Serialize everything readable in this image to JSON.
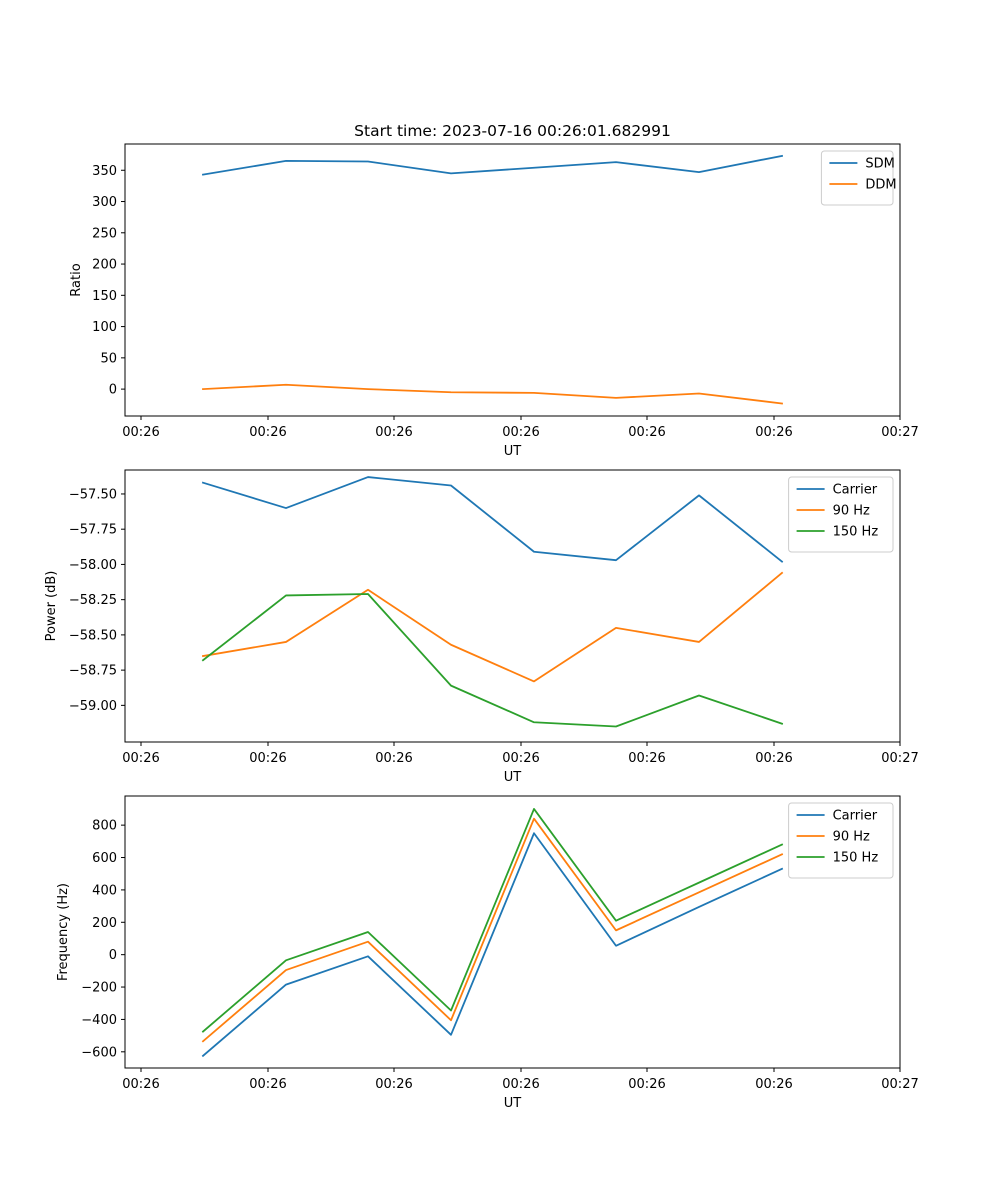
{
  "figure_title": "Start time: 2023-07-16 00:26:01.682991",
  "chart_data": [
    {
      "type": "line",
      "title": "Start time: 2023-07-16 00:26:01.682991",
      "xlabel": "UT",
      "ylabel": "Ratio",
      "x_tick_labels": [
        "00:26",
        "00:26",
        "00:26",
        "00:26",
        "00:26",
        "00:26",
        "00:27"
      ],
      "yticks": [
        0,
        50,
        100,
        150,
        200,
        250,
        300,
        350
      ],
      "ytick_labels": [
        "0",
        "50",
        "100",
        "150",
        "200",
        "250",
        "300",
        "350"
      ],
      "ylim": [
        -43,
        392
      ],
      "legend_position": "top-right",
      "series": [
        {
          "name": "SDM",
          "color": "#1f77b4",
          "values": [
            343,
            365,
            364,
            345,
            354,
            363,
            347,
            373
          ]
        },
        {
          "name": "DDM",
          "color": "#ff7f0e",
          "values": [
            0,
            7,
            0,
            -5,
            -6,
            -14,
            -7,
            -23
          ]
        }
      ]
    },
    {
      "type": "line",
      "title": "",
      "xlabel": "UT",
      "ylabel": "Power (dB)",
      "x_tick_labels": [
        "00:26",
        "00:26",
        "00:26",
        "00:26",
        "00:26",
        "00:26",
        "00:27"
      ],
      "yticks": [
        -59.0,
        -58.75,
        -58.5,
        -58.25,
        -58.0,
        -57.75,
        -57.5
      ],
      "ytick_labels": [
        "−59.00",
        "−58.75",
        "−58.50",
        "−58.25",
        "−58.00",
        "−57.75",
        "−57.50"
      ],
      "ylim": [
        -59.26,
        -57.33
      ],
      "legend_position": "top-right",
      "series": [
        {
          "name": "Carrier",
          "color": "#1f77b4",
          "values": [
            -57.42,
            -57.6,
            -57.38,
            -57.44,
            -57.91,
            -57.97,
            -57.51,
            -57.98
          ]
        },
        {
          "name": "90 Hz",
          "color": "#ff7f0e",
          "values": [
            -58.65,
            -58.55,
            -58.18,
            -58.57,
            -58.83,
            -58.45,
            -58.55,
            -58.06
          ]
        },
        {
          "name": "150 Hz",
          "color": "#2ca02c",
          "values": [
            -58.68,
            -58.22,
            -58.21,
            -58.86,
            -59.12,
            -59.15,
            -58.93,
            -59.13
          ]
        }
      ]
    },
    {
      "type": "line",
      "title": "",
      "xlabel": "UT",
      "ylabel": "Frequency (Hz)",
      "x_tick_labels": [
        "00:26",
        "00:26",
        "00:26",
        "00:26",
        "00:26",
        "00:26",
        "00:27"
      ],
      "yticks": [
        -600,
        -400,
        -200,
        0,
        200,
        400,
        600,
        800
      ],
      "ytick_labels": [
        "−600",
        "−400",
        "−200",
        "0",
        "200",
        "400",
        "600",
        "800"
      ],
      "ylim": [
        -700,
        980
      ],
      "legend_position": "top-right",
      "series": [
        {
          "name": "Carrier",
          "color": "#1f77b4",
          "values": [
            -625,
            -185,
            -10,
            -495,
            750,
            55,
            295,
            530
          ]
        },
        {
          "name": "90 Hz",
          "color": "#ff7f0e",
          "values": [
            -535,
            -95,
            80,
            -405,
            840,
            150,
            385,
            620
          ]
        },
        {
          "name": "150 Hz",
          "color": "#2ca02c",
          "values": [
            -475,
            -35,
            140,
            -345,
            900,
            210,
            445,
            680
          ]
        }
      ]
    }
  ]
}
